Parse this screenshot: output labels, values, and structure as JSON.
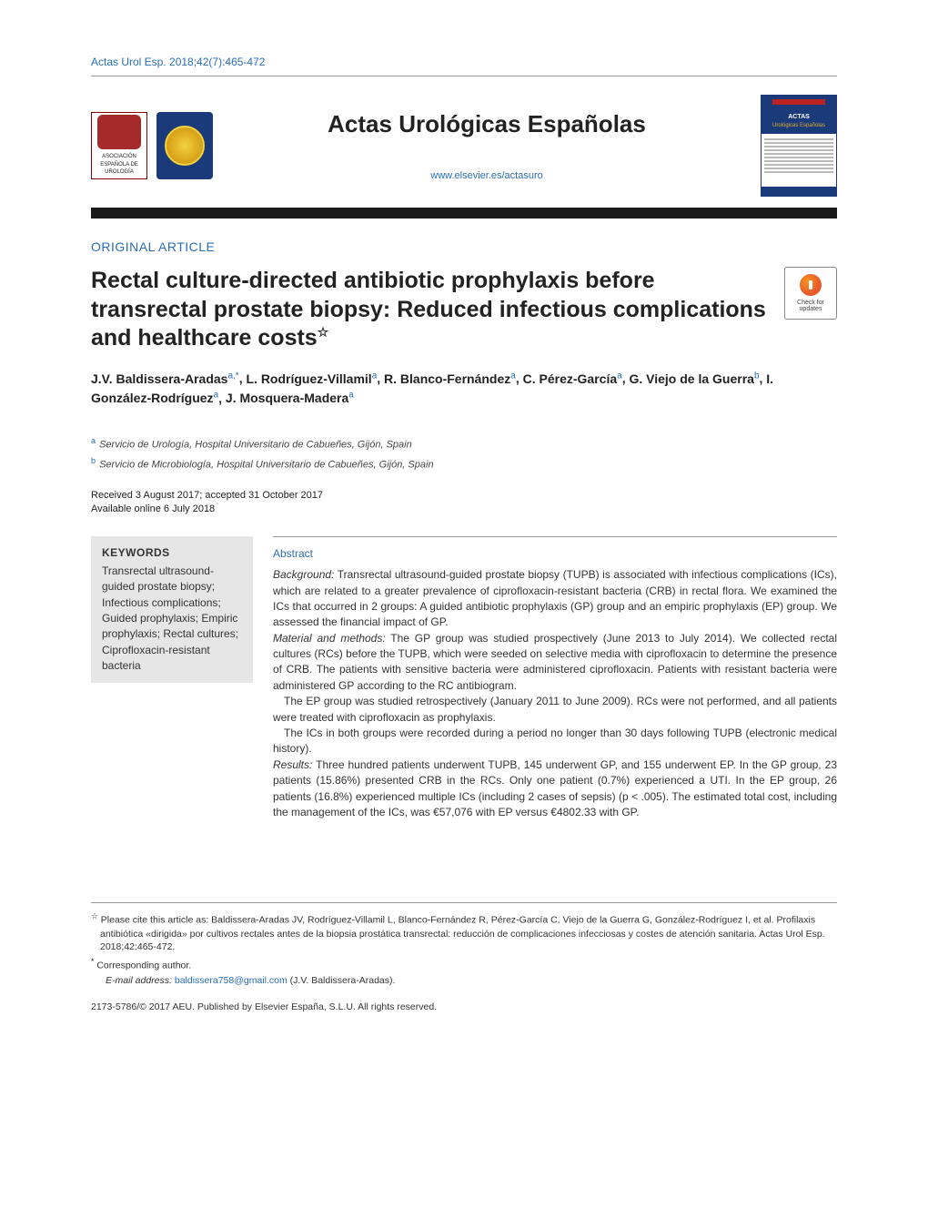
{
  "header": {
    "citation": "Actas Urol Esp. 2018;42(7):465-472",
    "journal_name": "Actas Urológicas Españolas",
    "journal_url": "www.elsevier.es/actasuro",
    "logo_aeu_text": "ASOCIACIÓN ESPAÑOLA DE UROLOGÍA",
    "cover_title1": "ACTAS",
    "cover_title2": "Urológicas Españolas"
  },
  "article": {
    "section_label": "ORIGINAL ARTICLE",
    "title": "Rectal culture-directed antibiotic prophylaxis before transrectal prostate biopsy: Reduced infectious complications and healthcare costs",
    "title_footnote_marker": "☆",
    "updates_badge_text": "Check for updates"
  },
  "authors": {
    "list": [
      {
        "name": "J.V. Baldissera-Aradas",
        "aff": "a,",
        "corr": "*"
      },
      {
        "name": "L. Rodríguez-Villamil",
        "aff": "a"
      },
      {
        "name": "R. Blanco-Fernández",
        "aff": "a"
      },
      {
        "name": "C. Pérez-García",
        "aff": "a"
      },
      {
        "name": "G. Viejo de la Guerra",
        "aff": "b"
      },
      {
        "name": "I. González-Rodríguez",
        "aff": "a"
      },
      {
        "name": "J. Mosquera-Madera",
        "aff": "a"
      }
    ]
  },
  "affiliations": {
    "a": "Servicio de Urología, Hospital Universitario de Cabueñes, Gijón, Spain",
    "b": "Servicio de Microbiología, Hospital Universitario de Cabueñes, Gijón, Spain"
  },
  "dates": {
    "received_accepted": "Received 3 August 2017; accepted 31 October 2017",
    "online": "Available online 6 July 2018"
  },
  "keywords": {
    "heading": "KEYWORDS",
    "text": "Transrectal ultrasound-guided prostate biopsy; Infectious complications; Guided prophylaxis; Empiric prophylaxis; Rectal cultures; Ciprofloxacin-resistant bacteria"
  },
  "abstract": {
    "heading": "Abstract",
    "background_label": "Background:",
    "background_text": " Transrectal ultrasound-guided prostate biopsy (TUPB) is associated with infectious complications (ICs), which are related to a greater prevalence of ciprofloxacin-resistant bacteria (CRB) in rectal flora. We examined the ICs that occurred in 2 groups: A guided antibiotic prophylaxis (GP) group and an empiric prophylaxis (EP) group. We assessed the financial impact of GP.",
    "methods_label": "Material and methods:",
    "methods_text": " The GP group was studied prospectively (June 2013 to July 2014). We collected rectal cultures (RCs) before the TUPB, which were seeded on selective media with ciprofloxacin to determine the presence of CRB. The patients with sensitive bacteria were administered ciprofloxacin. Patients with resistant bacteria were administered GP according to the RC antibiogram.",
    "methods_p2": "The EP group was studied retrospectively (January 2011 to June 2009). RCs were not performed, and all patients were treated with ciprofloxacin as prophylaxis.",
    "methods_p3": "The ICs in both groups were recorded during a period no longer than 30 days following TUPB (electronic medical history).",
    "results_label": "Results:",
    "results_text": " Three hundred patients underwent TUPB, 145 underwent GP, and 155 underwent EP. In the GP group, 23 patients (15.86%) presented CRB in the RCs. Only one patient (0.7%) experienced a UTI. In the EP group, 26 patients (16.8%) experienced multiple ICs (including 2 cases of sepsis) (p < .005). The estimated total cost, including the management of the ICs, was €57,076 with EP versus €4802.33 with GP."
  },
  "footnotes": {
    "cite_marker": "☆",
    "cite_text": " Please cite this article as: Baldissera-Aradas JV, Rodríguez-Villamil L, Blanco-Fernández R, Pérez-García C, Viejo de la Guerra G, González-Rodríguez I, et al. Profilaxis antibiótica «dirigida» por cultivos rectales antes de la biopsia prostática transrectal: reducción de complicaciones infecciosas y costes de atención sanitaria. Actas Urol Esp. 2018;42:465-472.",
    "corr_marker": "*",
    "corr_text": " Corresponding author.",
    "email_label": "E-mail address: ",
    "email": "baldissera758@gmail.com",
    "email_author": " (J.V. Baldissera-Aradas)."
  },
  "copyright": "2173-5786/© 2017 AEU. Published by Elsevier España, S.L.U. All rights reserved.",
  "colors": {
    "link": "#2a6db5",
    "text": "#333333",
    "blackbar": "#1a1a1a",
    "kw_bg": "#e6e6e6",
    "logo_blue": "#1a3a7a",
    "logo_red": "#a52a2a"
  }
}
